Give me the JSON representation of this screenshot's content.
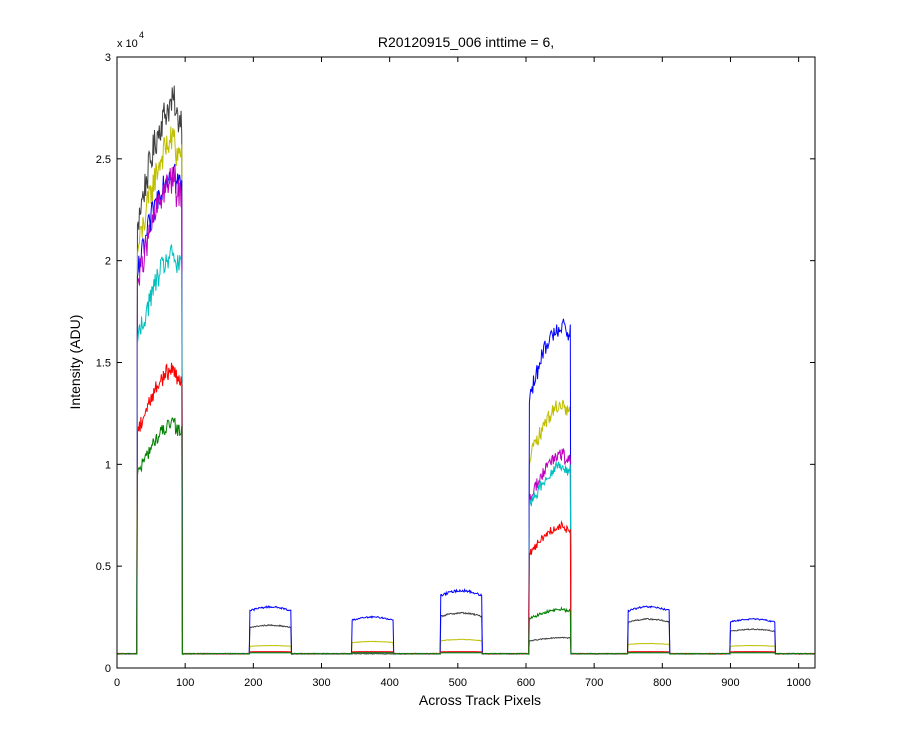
{
  "chart_data": {
    "type": "line",
    "title": "R20120915_006 inttime = 6,",
    "xlabel": "Across Track Pixels",
    "ylabel": "Intensity (ADU)",
    "exponent_label": "x 10",
    "exponent_power": "4",
    "xlim": [
      0,
      1024
    ],
    "ylim": [
      0,
      30000
    ],
    "xticks": [
      0,
      100,
      200,
      300,
      400,
      500,
      600,
      700,
      800,
      900,
      1000
    ],
    "yticks": [
      0,
      5000,
      10000,
      15000,
      20000,
      25000,
      30000
    ],
    "yticklabels": [
      "0",
      "0.5",
      "1",
      "1.5",
      "2",
      "2.5",
      "3"
    ],
    "xticklabels": [
      "0",
      "100",
      "200",
      "300",
      "400",
      "500",
      "600",
      "700",
      "800",
      "900",
      "1000"
    ],
    "grid": false,
    "legend": "none",
    "baseline": 700,
    "bands": [
      {
        "x0": 30,
        "x1": 95
      },
      {
        "x0": 195,
        "x1": 255
      },
      {
        "x0": 345,
        "x1": 405
      },
      {
        "x0": 475,
        "x1": 535
      },
      {
        "x0": 605,
        "x1": 665
      },
      {
        "x0": 750,
        "x1": 810
      },
      {
        "x0": 900,
        "x1": 965
      }
    ],
    "series": [
      {
        "color": "#404040",
        "peaks": [
          27800,
          2100,
          700,
          2700,
          1500,
          2400,
          1900
        ]
      },
      {
        "color": "#bfbf00",
        "peaks": [
          26000,
          1100,
          1300,
          1400,
          13000,
          1200,
          1100
        ]
      },
      {
        "color": "#0000ff",
        "peaks": [
          24500,
          3000,
          2500,
          3800,
          16900,
          3000,
          2400
        ]
      },
      {
        "color": "#bf00bf",
        "peaks": [
          24000,
          800,
          800,
          800,
          10500,
          800,
          800
        ]
      },
      {
        "color": "#00bfbf",
        "peaks": [
          20300,
          750,
          750,
          750,
          10000,
          750,
          750
        ]
      },
      {
        "color": "#ff0000",
        "peaks": [
          14700,
          800,
          800,
          800,
          7000,
          800,
          800
        ]
      },
      {
        "color": "#008000",
        "peaks": [
          12000,
          750,
          750,
          750,
          2900,
          750,
          750
        ]
      }
    ]
  }
}
